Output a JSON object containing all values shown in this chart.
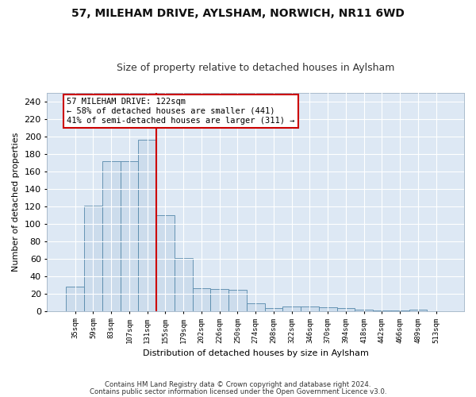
{
  "title": "57, MILEHAM DRIVE, AYLSHAM, NORWICH, NR11 6WD",
  "subtitle": "Size of property relative to detached houses in Aylsham",
  "xlabel": "Distribution of detached houses by size in Aylsham",
  "ylabel": "Number of detached properties",
  "footnote1": "Contains HM Land Registry data © Crown copyright and database right 2024.",
  "footnote2": "Contains public sector information licensed under the Open Government Licence v3.0.",
  "annotation_title": "57 MILEHAM DRIVE: 122sqm",
  "annotation_line2": "← 58% of detached houses are smaller (441)",
  "annotation_line3": "41% of semi-detached houses are larger (311) →",
  "bar_labels": [
    "35sqm",
    "59sqm",
    "83sqm",
    "107sqm",
    "131sqm",
    "155sqm",
    "179sqm",
    "202sqm",
    "226sqm",
    "250sqm",
    "274sqm",
    "298sqm",
    "322sqm",
    "346sqm",
    "370sqm",
    "394sqm",
    "418sqm",
    "442sqm",
    "466sqm",
    "489sqm",
    "513sqm"
  ],
  "bar_values": [
    28,
    121,
    172,
    172,
    196,
    110,
    61,
    26,
    25,
    24,
    9,
    3,
    5,
    5,
    4,
    3,
    2,
    1,
    1,
    2,
    0
  ],
  "bar_color": "#ccdcec",
  "bar_edge_color": "#5588aa",
  "background_color": "#dde8f4",
  "grid_color": "#ffffff",
  "fig_background": "#ffffff",
  "vline_x": 4.5,
  "vline_color": "#cc0000",
  "ylim": [
    0,
    250
  ],
  "yticks": [
    0,
    20,
    40,
    60,
    80,
    100,
    120,
    140,
    160,
    180,
    200,
    220,
    240
  ],
  "annotation_box_facecolor": "#ffffff",
  "annotation_box_edgecolor": "#cc0000",
  "title_fontsize": 10,
  "subtitle_fontsize": 9
}
